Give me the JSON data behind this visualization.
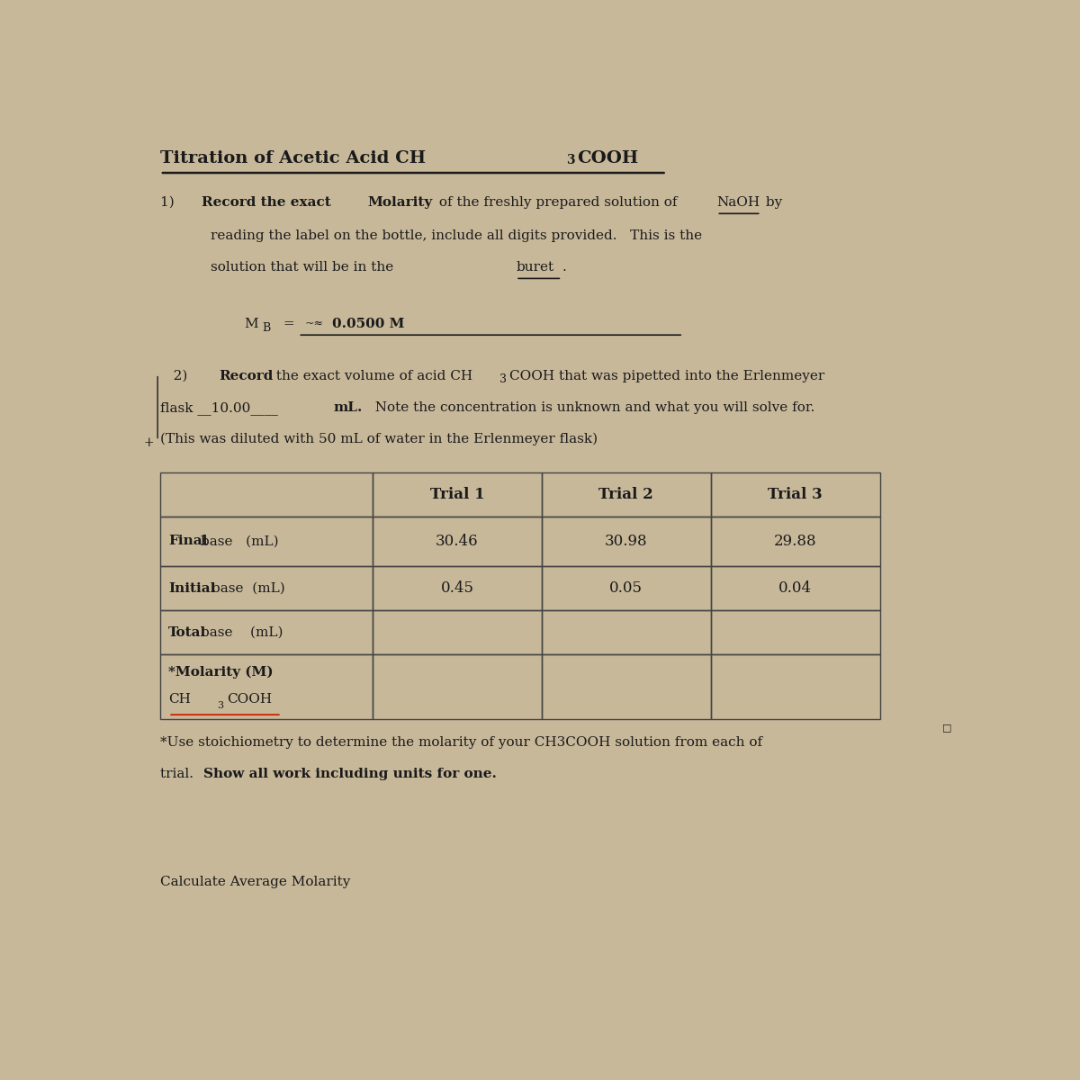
{
  "title": "Titration of Acetic Acid CH3COOH",
  "bg_color": "#c8b89a",
  "text_color": "#1a1a1a",
  "table_headers": [
    "",
    "Trial 1",
    "Trial 2",
    "Trial 3"
  ],
  "table_rows": [
    [
      "Final base   (mL)",
      "30.46",
      "30.98",
      "29.88"
    ],
    [
      "Initial base  (mL)",
      "0.45",
      "0.05",
      "0.04"
    ],
    [
      "Total base    (mL)",
      "",
      "",
      ""
    ],
    [
      "*Molarity (M) CH3COOH",
      "",
      "",
      ""
    ]
  ],
  "footnote1": "*Use stoichiometry to determine the molarity of your CH3COOH solution from each of",
  "footnote2": "trial.  Show all work including units for one.",
  "footer_text": "Calculate Average Molarity"
}
